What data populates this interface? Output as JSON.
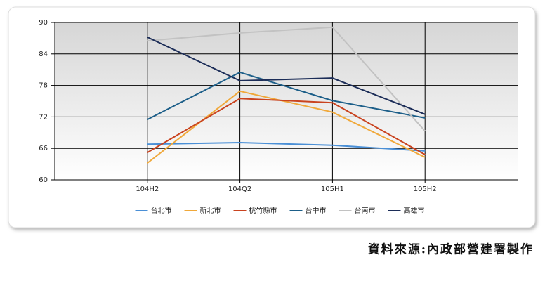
{
  "chart_data": {
    "type": "line",
    "categories": [
      "104H2",
      "104Q2",
      "105H1",
      "105H2"
    ],
    "series": [
      {
        "name": "台北市",
        "color": "#4a8fd6",
        "values": [
          66.8,
          67.1,
          66.6,
          65.5
        ]
      },
      {
        "name": "新北市",
        "color": "#f0a83a",
        "values": [
          63.2,
          76.9,
          72.9,
          64.3
        ]
      },
      {
        "name": "桃竹縣市",
        "color": "#c9431f",
        "values": [
          65.2,
          75.5,
          74.7,
          64.8
        ]
      },
      {
        "name": "台中市",
        "color": "#1d5f89",
        "values": [
          71.5,
          80.5,
          75.1,
          71.8
        ]
      },
      {
        "name": "台南市",
        "color": "#c2c2c2",
        "values": [
          86.5,
          88.0,
          89.1,
          69.3
        ]
      },
      {
        "name": "高雄市",
        "color": "#1c2d58",
        "values": [
          87.2,
          78.9,
          79.4,
          72.5
        ]
      }
    ],
    "ylim": [
      60,
      90
    ],
    "yticks": [
      60,
      66,
      72,
      78,
      84,
      90
    ],
    "grid": true,
    "legend": "bottom"
  },
  "footer": "資料來源:內政部營建署製作"
}
